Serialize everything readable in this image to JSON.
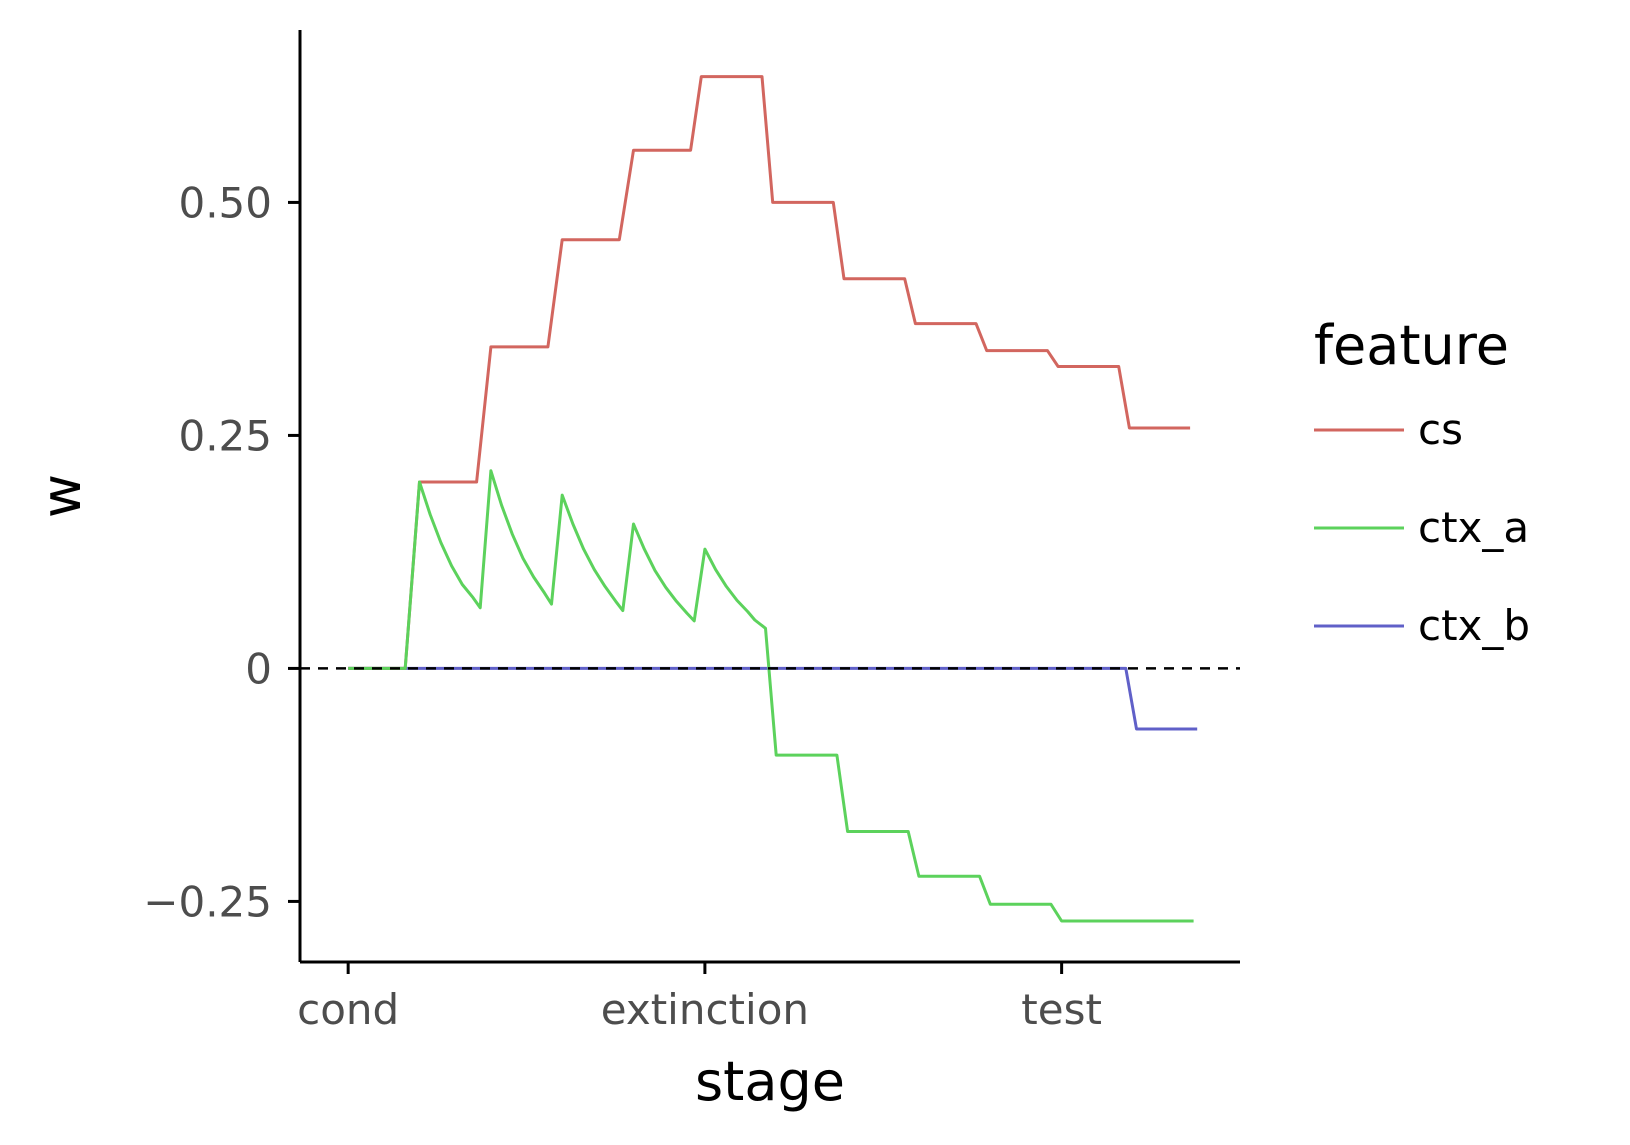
{
  "chart_data": {
    "type": "line",
    "xlabel": "stage",
    "ylabel": "w",
    "x_ticks": [
      "cond",
      "extinction",
      "test"
    ],
    "x_tick_values": [
      0,
      1,
      2
    ],
    "xlim": [
      -0.135,
      2.5
    ],
    "y_ticks": [
      0.5,
      0.25,
      0,
      -0.25
    ],
    "y_tick_labels": [
      "0.50",
      "0.25",
      "0",
      "−0.25"
    ],
    "ylim": [
      -0.315,
      0.685
    ],
    "reference_line": {
      "y": 0,
      "style": "dashed",
      "color": "#000000"
    },
    "grid": false,
    "legend": {
      "title": "feature",
      "position": "right",
      "entries": [
        {
          "name": "cs",
          "color": "#d2665f"
        },
        {
          "name": "ctx_a",
          "color": "#5cd25c"
        },
        {
          "name": "ctx_b",
          "color": "#6060c8"
        }
      ]
    },
    "series": [
      {
        "name": "cs",
        "color": "#d2665f",
        "points": [
          [
            0.0,
            0.0
          ],
          [
            0.16,
            0.0
          ],
          [
            0.2,
            0.2
          ],
          [
            0.36,
            0.2
          ],
          [
            0.4,
            0.345
          ],
          [
            0.56,
            0.345
          ],
          [
            0.6,
            0.46
          ],
          [
            0.76,
            0.46
          ],
          [
            0.8,
            0.556
          ],
          [
            0.96,
            0.556
          ],
          [
            0.99,
            0.635
          ],
          [
            1.16,
            0.635
          ],
          [
            1.19,
            0.5
          ],
          [
            1.36,
            0.5
          ],
          [
            1.39,
            0.418
          ],
          [
            1.56,
            0.418
          ],
          [
            1.59,
            0.37
          ],
          [
            1.76,
            0.37
          ],
          [
            1.79,
            0.341
          ],
          [
            1.96,
            0.341
          ],
          [
            1.99,
            0.324
          ],
          [
            2.16,
            0.324
          ],
          [
            2.19,
            0.258
          ],
          [
            2.36,
            0.258
          ]
        ]
      },
      {
        "name": "ctx_a",
        "color": "#5cd25c",
        "points": [
          [
            0.0,
            0.0
          ],
          [
            0.16,
            0.0
          ],
          [
            0.2,
            0.2
          ],
          [
            0.23,
            0.165
          ],
          [
            0.26,
            0.135
          ],
          [
            0.29,
            0.11
          ],
          [
            0.32,
            0.09
          ],
          [
            0.35,
            0.076
          ],
          [
            0.37,
            0.065
          ],
          [
            0.4,
            0.212
          ],
          [
            0.43,
            0.175
          ],
          [
            0.46,
            0.144
          ],
          [
            0.49,
            0.118
          ],
          [
            0.52,
            0.098
          ],
          [
            0.55,
            0.081
          ],
          [
            0.57,
            0.069
          ],
          [
            0.6,
            0.186
          ],
          [
            0.63,
            0.155
          ],
          [
            0.66,
            0.128
          ],
          [
            0.69,
            0.106
          ],
          [
            0.72,
            0.088
          ],
          [
            0.75,
            0.072
          ],
          [
            0.77,
            0.062
          ],
          [
            0.8,
            0.155
          ],
          [
            0.83,
            0.128
          ],
          [
            0.86,
            0.105
          ],
          [
            0.89,
            0.087
          ],
          [
            0.92,
            0.072
          ],
          [
            0.95,
            0.059
          ],
          [
            0.97,
            0.051
          ],
          [
            1.0,
            0.128
          ],
          [
            1.03,
            0.106
          ],
          [
            1.06,
            0.088
          ],
          [
            1.09,
            0.073
          ],
          [
            1.12,
            0.061
          ],
          [
            1.14,
            0.052
          ],
          [
            1.17,
            0.043
          ],
          [
            1.2,
            -0.093
          ],
          [
            1.37,
            -0.093
          ],
          [
            1.4,
            -0.175
          ],
          [
            1.57,
            -0.175
          ],
          [
            1.6,
            -0.223
          ],
          [
            1.77,
            -0.223
          ],
          [
            1.8,
            -0.253
          ],
          [
            1.97,
            -0.253
          ],
          [
            2.0,
            -0.271
          ],
          [
            2.37,
            -0.271
          ]
        ]
      },
      {
        "name": "ctx_b",
        "color": "#6060c8",
        "points": [
          [
            0.0,
            0.0
          ],
          [
            2.18,
            0.0
          ],
          [
            2.21,
            -0.065
          ],
          [
            2.38,
            -0.065
          ]
        ]
      }
    ]
  }
}
